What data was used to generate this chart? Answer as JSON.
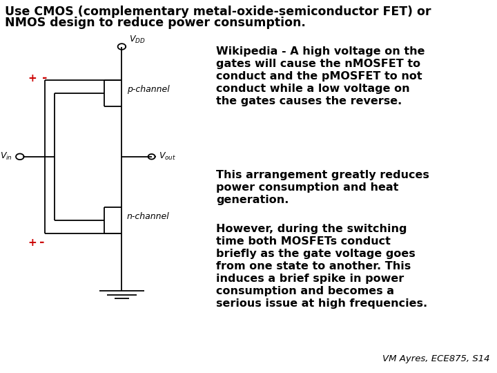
{
  "background_color": "#ffffff",
  "text_color": "#000000",
  "red_color": "#cc0000",
  "title_line1": "Use CMOS (complementary metal-oxide-semiconductor FET) or",
  "title_line2": "NMOS design to reduce power consumption.",
  "title_fontsize": 12.5,
  "text1": "Wikipedia - A high voltage on the\ngates will cause the nMOSFET to\nconduct and the pMOSFET to not\nconduct while a low voltage on\nthe gates causes the reverse.",
  "text2": "This arrangement greatly reduces\npower consumption and heat\ngeneration.",
  "text3": "However, during the switching\ntime both MOSFETs conduct\nbriefly as the gate voltage goes\nfrom one state to another. This\ninduces a brief spike in power\nconsumption and becomes a\nserious issue at high frequencies.",
  "text_fontsize": 11.5,
  "footnote": "VM Ayres, ECE875, S14",
  "footnote_fontsize": 9.5
}
